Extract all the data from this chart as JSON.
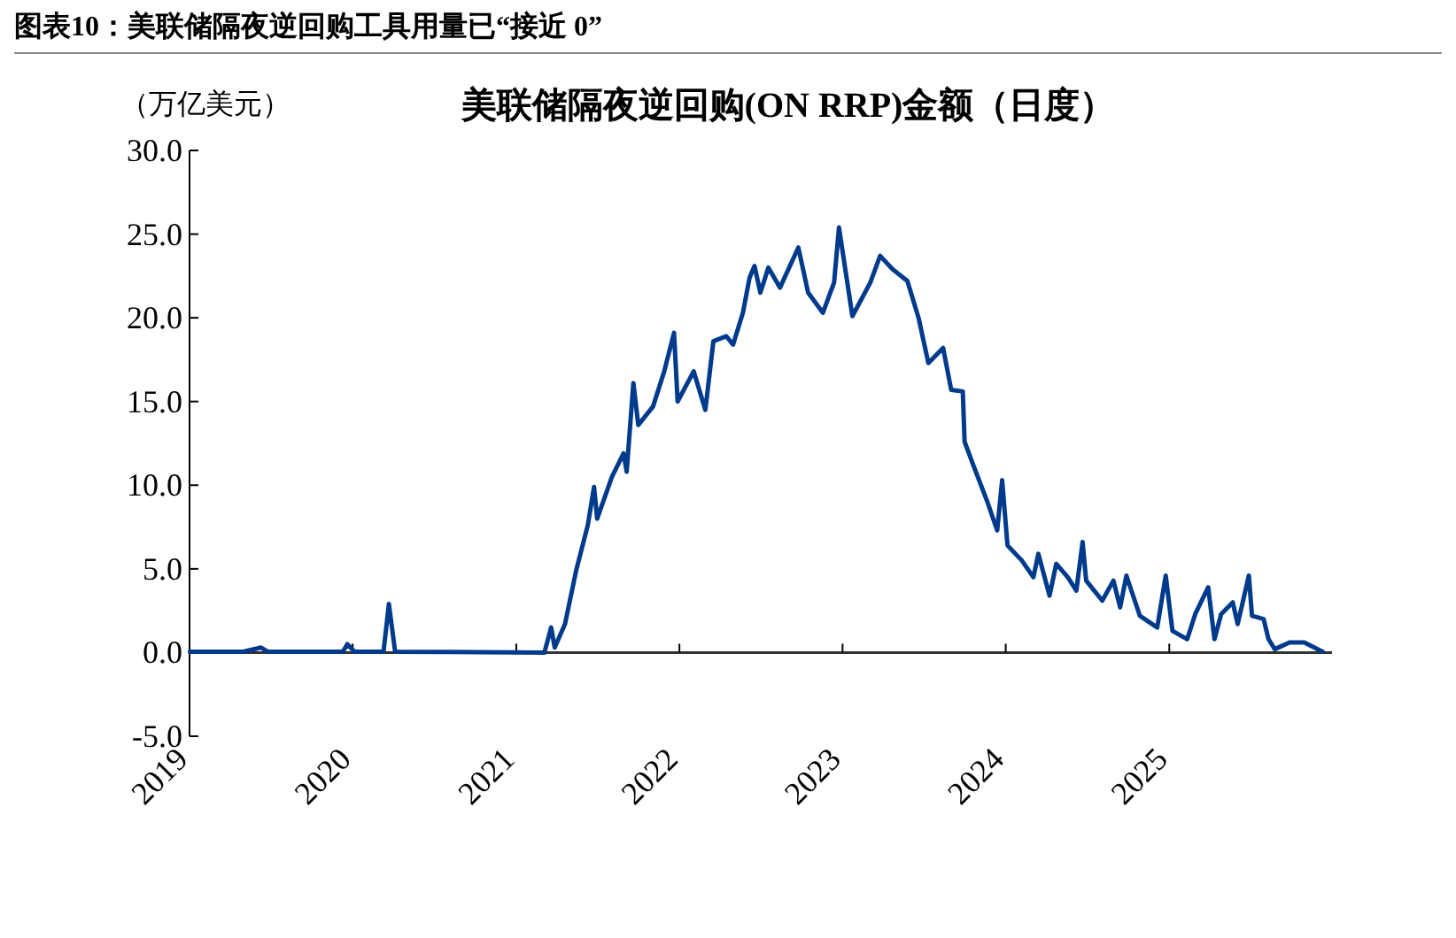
{
  "chart_data": {
    "type": "line",
    "title": "图表10：美联储隔夜逆回购工具用量已“接近 0”",
    "subtitle": "美联储隔夜逆回购(ON RRP)金额（日度）",
    "ylabel": "（万亿美元）",
    "x": [
      "2019-01-02",
      "2019-05-01",
      "2019-06-10",
      "2019-06-25",
      "2019-12-10",
      "2019-12-20",
      "2020-01-05",
      "2020-03-10",
      "2020-03-22",
      "2020-04-05",
      "2021-03-05",
      "2021-03-20",
      "2021-03-28",
      "2021-04-20",
      "2021-05-15",
      "2021-06-10",
      "2021-06-24",
      "2021-07-01",
      "2021-08-03",
      "2021-08-29",
      "2021-09-05",
      "2021-09-20",
      "2021-10-01",
      "2021-11-03",
      "2021-11-28",
      "2021-12-20",
      "2021-12-28",
      "2022-02-02",
      "2022-02-28",
      "2022-03-18",
      "2022-04-16",
      "2022-05-01",
      "2022-05-23",
      "2022-06-07",
      "2022-06-18",
      "2022-07-01",
      "2022-07-19",
      "2022-08-14",
      "2022-09-24",
      "2022-10-16",
      "2022-11-18",
      "2022-12-13",
      "2022-12-24",
      "2023-01-23",
      "2023-03-04",
      "2023-03-26",
      "2023-04-23",
      "2023-05-26",
      "2023-06-20",
      "2023-07-12",
      "2023-08-14",
      "2023-09-01",
      "2023-09-27",
      "2023-10-01",
      "2023-10-19",
      "2023-11-21",
      "2023-12-13",
      "2023-12-24",
      "2024-01-05",
      "2024-02-06",
      "2024-03-03",
      "2024-03-14",
      "2024-04-08",
      "2024-04-23",
      "2024-05-19",
      "2024-06-07",
      "2024-06-21",
      "2024-06-29",
      "2024-08-04",
      "2024-08-29",
      "2024-09-13",
      "2024-09-27",
      "2024-10-27",
      "2024-12-05",
      "2024-12-24",
      "2025-01-08",
      "2025-02-10",
      "2025-02-28",
      "2025-03-29",
      "2025-04-12",
      "2025-04-27",
      "2025-05-23",
      "2025-06-03",
      "2025-06-28",
      "2025-07-05",
      "2025-07-31",
      "2025-08-11",
      "2025-08-25",
      "2025-09-27",
      "2025-10-30",
      "2025-12-10"
    ],
    "series": [
      {
        "color": "#003a8c",
        "values": [
          0.05,
          0.05,
          0.3,
          0.05,
          0.05,
          0.5,
          0.05,
          0.05,
          2.9,
          0.05,
          0.0,
          1.5,
          0.3,
          1.7,
          4.9,
          7.6,
          9.9,
          8.0,
          10.5,
          11.9,
          10.8,
          16.1,
          13.6,
          14.7,
          16.8,
          19.1,
          15.0,
          16.8,
          14.5,
          18.6,
          18.9,
          18.4,
          20.3,
          22.4,
          23.1,
          21.5,
          23.0,
          21.8,
          24.2,
          21.5,
          20.3,
          22.1,
          25.4,
          20.1,
          22.1,
          23.7,
          22.9,
          22.2,
          20.0,
          17.3,
          18.2,
          15.7,
          15.6,
          12.6,
          11.3,
          9.0,
          7.3,
          10.3,
          6.4,
          5.5,
          4.5,
          5.9,
          3.4,
          5.3,
          4.5,
          3.7,
          6.6,
          4.3,
          3.1,
          4.3,
          2.7,
          4.6,
          2.2,
          1.5,
          4.6,
          1.3,
          0.8,
          2.3,
          3.9,
          0.8,
          2.3,
          3.0,
          1.7,
          4.6,
          2.2,
          2.0,
          0.8,
          0.2,
          0.6,
          0.6,
          0.05
        ]
      }
    ],
    "xlim": [
      "2019-01-01",
      "2025-12-31"
    ],
    "xticks": [
      {
        "value": "2019-01-01",
        "label": "2019"
      },
      {
        "value": "2020-01-01",
        "label": "2020"
      },
      {
        "value": "2021-01-01",
        "label": "2021"
      },
      {
        "value": "2022-01-01",
        "label": "2022"
      },
      {
        "value": "2023-01-01",
        "label": "2023"
      },
      {
        "value": "2024-01-01",
        "label": "2024"
      },
      {
        "value": "2025-01-01",
        "label": "2025"
      }
    ],
    "ylim": [
      -5,
      30
    ],
    "yticks": [
      {
        "value": -5,
        "label": "-5.0"
      },
      {
        "value": 0,
        "label": "0.0"
      },
      {
        "value": 5,
        "label": "5.0"
      },
      {
        "value": 10,
        "label": "10.0"
      },
      {
        "value": 15,
        "label": "15.0"
      },
      {
        "value": 20,
        "label": "20.0"
      },
      {
        "value": 25,
        "label": "25.0"
      },
      {
        "value": 30,
        "label": "30.0"
      }
    ]
  }
}
